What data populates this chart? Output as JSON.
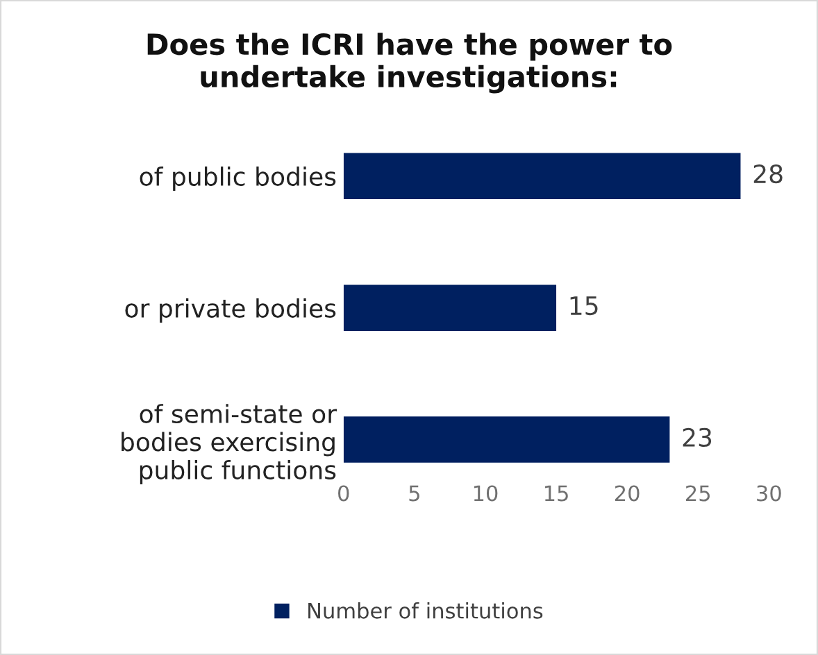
{
  "chart_data": {
    "type": "bar",
    "orientation": "horizontal",
    "title": "Does the ICRI have the power to\nundertake investigations:",
    "categories": [
      "of public bodies",
      "or private bodies",
      "of semi-state or\nbodies exercising\npublic functions"
    ],
    "series": [
      {
        "name": "Number of institutions",
        "color": "#002060",
        "values": [
          28,
          15,
          23
        ]
      }
    ],
    "xlim": [
      0,
      30
    ],
    "xticks": [
      0,
      5,
      10,
      15,
      20,
      25,
      30
    ],
    "data_labels": true,
    "grid": false,
    "legend": "bottom"
  }
}
